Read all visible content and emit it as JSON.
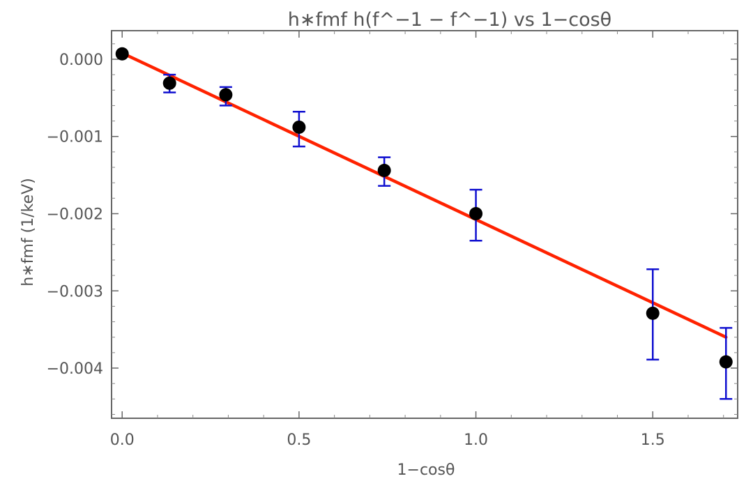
{
  "chart_data": {
    "type": "scatter",
    "title": "h∗fmf h(f^−1 − f^−1) vs 1−cosθ",
    "xlabel": "1−cosθ",
    "ylabel": "h∗fmf (1/keV)",
    "xlim": [
      -0.03,
      1.74
    ],
    "ylim": [
      -0.00465,
      0.00037
    ],
    "x_ticks": [
      {
        "value": 0.0,
        "label": "0.0"
      },
      {
        "value": 0.5,
        "label": "0.5"
      },
      {
        "value": 1.0,
        "label": "1.0"
      },
      {
        "value": 1.5,
        "label": "1.5"
      }
    ],
    "y_ticks": [
      {
        "value": 0.0,
        "label": "0.000"
      },
      {
        "value": -0.001,
        "label": "−0.001"
      },
      {
        "value": -0.002,
        "label": "−0.002"
      },
      {
        "value": -0.003,
        "label": "−0.003"
      },
      {
        "value": -0.004,
        "label": "−0.004"
      }
    ],
    "grid": false,
    "series": [
      {
        "type": "scatter",
        "color": "#000000",
        "error_color": "#1010d0",
        "points": [
          {
            "x": 0.0,
            "y": 7e-05
          },
          {
            "x": 0.134,
            "y": -0.00031,
            "err_low": -0.00043,
            "err_high": -0.0002
          },
          {
            "x": 0.293,
            "y": -0.00046,
            "err_low": -0.0006,
            "err_high": -0.00036
          },
          {
            "x": 0.5,
            "y": -0.00088,
            "err_low": -0.00113,
            "err_high": -0.00068
          },
          {
            "x": 0.741,
            "y": -0.00144,
            "err_low": -0.00164,
            "err_high": -0.00127
          },
          {
            "x": 1.0,
            "y": -0.002,
            "err_low": -0.00235,
            "err_high": -0.00169
          },
          {
            "x": 1.5,
            "y": -0.00329,
            "err_low": -0.00389,
            "err_high": -0.00272
          },
          {
            "x": 1.707,
            "y": -0.00392,
            "err_low": -0.0044,
            "err_high": -0.00348
          }
        ]
      },
      {
        "type": "line",
        "color": "#ff2200",
        "points": [
          {
            "x": 0.0,
            "y": 8e-05
          },
          {
            "x": 1.707,
            "y": -0.0036
          }
        ]
      }
    ]
  }
}
